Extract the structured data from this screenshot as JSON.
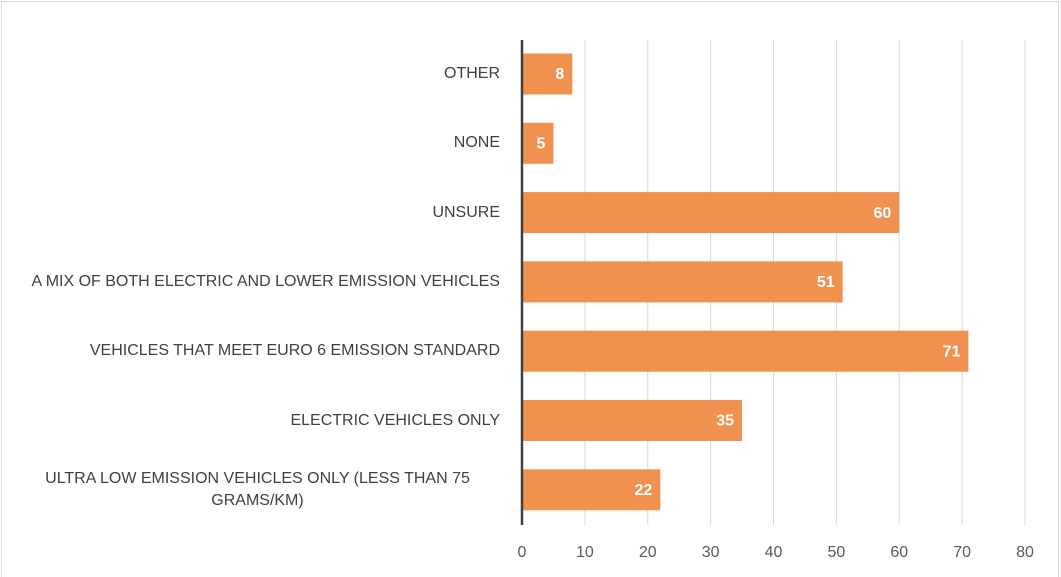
{
  "chart_data": {
    "type": "bar",
    "orientation": "horizontal",
    "categories": [
      "OTHER",
      "NONE",
      "UNSURE",
      "A MIX OF BOTH ELECTRIC AND LOWER EMISSION VEHICLES",
      "VEHICLES THAT MEET EURO 6 EMISSION STANDARD",
      "ELECTRIC VEHICLES ONLY",
      "ULTRA LOW EMISSION VEHICLES ONLY (LESS THAN 75 GRAMS/KM)"
    ],
    "values": [
      8,
      5,
      60,
      51,
      71,
      35,
      22
    ],
    "color": "#f0914f",
    "xlim": [
      0,
      80
    ],
    "xticks": [
      0,
      10,
      20,
      30,
      40,
      50,
      60,
      70,
      80
    ],
    "grid": true
  }
}
